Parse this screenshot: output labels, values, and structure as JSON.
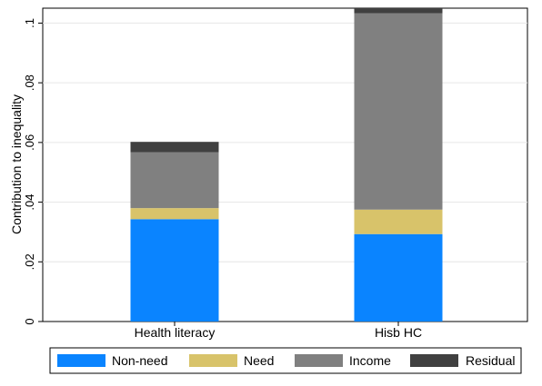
{
  "chart_data": {
    "type": "bar",
    "stacked": true,
    "categories": [
      "Health literacy",
      "Hisb HC"
    ],
    "series": [
      {
        "name": "Non-need",
        "color": "#0a84ff",
        "values": [
          0.0343,
          0.0293
        ]
      },
      {
        "name": "Need",
        "color": "#d8c36a",
        "values": [
          0.0037,
          0.0082
        ]
      },
      {
        "name": "Income",
        "color": "#808080",
        "values": [
          0.0187,
          0.0658
        ]
      },
      {
        "name": "Residual",
        "color": "#404040",
        "values": [
          0.0035,
          0.0015
        ]
      }
    ],
    "ylabel": "Contribution to inequality",
    "ylim": [
      0,
      0.105
    ],
    "yticks": [
      {
        "value": 0,
        "label": "0"
      },
      {
        "value": 0.02,
        "label": ".02"
      },
      {
        "value": 0.04,
        "label": ".04"
      },
      {
        "value": 0.06,
        "label": ".06"
      },
      {
        "value": 0.08,
        "label": ".08"
      },
      {
        "value": 0.1,
        "label": ".1"
      }
    ],
    "grid": true,
    "legend_position": "bottom"
  }
}
